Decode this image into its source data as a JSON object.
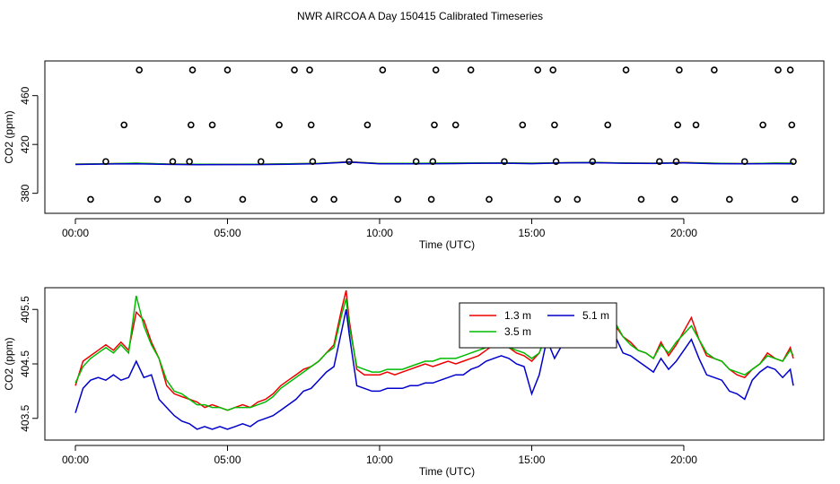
{
  "title": "NWR AIRCOA A  Day 150415  Calibrated Timeseries",
  "chart_data": [
    {
      "type": "scatter",
      "title": "",
      "xlabel": "Time (UTC)",
      "ylabel": "CO2 (ppm)",
      "xlim": [
        0,
        24
      ],
      "ylim": [
        368,
        484
      ],
      "x_ticks": [
        0,
        5,
        10,
        15,
        20
      ],
      "x_tick_labels": [
        "00:00",
        "05:00",
        "10:00",
        "15:00",
        "20:00"
      ],
      "y_ticks": [
        380,
        420,
        460
      ],
      "y_tick_labels": [
        "380",
        "420",
        "460"
      ],
      "grid": false,
      "scatter_points": [
        {
          "x": 0.5,
          "y": 375
        },
        {
          "x": 1.0,
          "y": 406
        },
        {
          "x": 1.6,
          "y": 436
        },
        {
          "x": 2.1,
          "y": 481
        },
        {
          "x": 2.7,
          "y": 375
        },
        {
          "x": 3.2,
          "y": 406
        },
        {
          "x": 3.7,
          "y": 375
        },
        {
          "x": 3.75,
          "y": 406
        },
        {
          "x": 3.8,
          "y": 436
        },
        {
          "x": 3.85,
          "y": 481
        },
        {
          "x": 4.5,
          "y": 436
        },
        {
          "x": 5.0,
          "y": 481
        },
        {
          "x": 5.5,
          "y": 375
        },
        {
          "x": 6.1,
          "y": 406
        },
        {
          "x": 6.7,
          "y": 436
        },
        {
          "x": 7.2,
          "y": 481
        },
        {
          "x": 7.7,
          "y": 481
        },
        {
          "x": 7.75,
          "y": 436
        },
        {
          "x": 7.8,
          "y": 406
        },
        {
          "x": 7.85,
          "y": 375
        },
        {
          "x": 8.5,
          "y": 375
        },
        {
          "x": 9.0,
          "y": 406
        },
        {
          "x": 9.6,
          "y": 436
        },
        {
          "x": 10.1,
          "y": 481
        },
        {
          "x": 10.6,
          "y": 375
        },
        {
          "x": 11.2,
          "y": 406
        },
        {
          "x": 11.7,
          "y": 375
        },
        {
          "x": 11.75,
          "y": 406
        },
        {
          "x": 11.8,
          "y": 436
        },
        {
          "x": 11.85,
          "y": 481
        },
        {
          "x": 12.5,
          "y": 436
        },
        {
          "x": 13.0,
          "y": 481
        },
        {
          "x": 13.6,
          "y": 375
        },
        {
          "x": 14.1,
          "y": 406
        },
        {
          "x": 14.7,
          "y": 436
        },
        {
          "x": 15.2,
          "y": 481
        },
        {
          "x": 15.7,
          "y": 481
        },
        {
          "x": 15.75,
          "y": 436
        },
        {
          "x": 15.8,
          "y": 406
        },
        {
          "x": 15.85,
          "y": 375
        },
        {
          "x": 16.5,
          "y": 375
        },
        {
          "x": 17.0,
          "y": 406
        },
        {
          "x": 17.5,
          "y": 436
        },
        {
          "x": 18.1,
          "y": 481
        },
        {
          "x": 18.6,
          "y": 375
        },
        {
          "x": 19.2,
          "y": 406
        },
        {
          "x": 19.7,
          "y": 375
        },
        {
          "x": 19.75,
          "y": 406
        },
        {
          "x": 19.8,
          "y": 436
        },
        {
          "x": 19.85,
          "y": 481
        },
        {
          "x": 20.4,
          "y": 436
        },
        {
          "x": 21.0,
          "y": 481
        },
        {
          "x": 21.5,
          "y": 375
        },
        {
          "x": 22.0,
          "y": 406
        },
        {
          "x": 22.6,
          "y": 436
        },
        {
          "x": 23.1,
          "y": 481
        },
        {
          "x": 23.5,
          "y": 481
        },
        {
          "x": 23.55,
          "y": 436
        },
        {
          "x": 23.6,
          "y": 406
        },
        {
          "x": 23.65,
          "y": 375
        }
      ],
      "line_series": [
        {
          "name": "1.3 m",
          "color": "#ee0000",
          "x": [
            0,
            1,
            2,
            3,
            4,
            5,
            6,
            7,
            8,
            9,
            10,
            11,
            12,
            13,
            14,
            15,
            16,
            17,
            18,
            19,
            20,
            21,
            22,
            23,
            23.6
          ],
          "y": [
            403.9,
            404.2,
            404.6,
            404.0,
            403.8,
            403.7,
            403.8,
            404.1,
            404.5,
            405.8,
            404.4,
            404.4,
            404.6,
            404.7,
            404.9,
            404.6,
            405.0,
            405.3,
            404.8,
            404.6,
            405.2,
            404.6,
            404.3,
            404.7,
            404.6
          ]
        },
        {
          "name": "3.5 m",
          "color": "#00bb00",
          "x": [
            0,
            1,
            2,
            3,
            4,
            5,
            6,
            7,
            8,
            9,
            10,
            11,
            12,
            13,
            14,
            15,
            16,
            17,
            18,
            19,
            20,
            21,
            22,
            23,
            23.6
          ],
          "y": [
            403.9,
            404.2,
            404.7,
            404.0,
            403.8,
            403.7,
            403.8,
            404.1,
            404.5,
            405.7,
            404.4,
            404.5,
            404.7,
            404.8,
            404.9,
            404.6,
            405.0,
            405.3,
            404.8,
            404.6,
            405.1,
            404.6,
            404.3,
            404.7,
            404.6
          ]
        },
        {
          "name": "5.1 m",
          "color": "#0000cc",
          "x": [
            0,
            1,
            2,
            3,
            4,
            5,
            6,
            7,
            8,
            9,
            10,
            11,
            12,
            13,
            14,
            15,
            16,
            17,
            18,
            19,
            20,
            21,
            22,
            23,
            23.6
          ],
          "y": [
            403.6,
            404.0,
            404.2,
            403.7,
            403.4,
            403.5,
            403.5,
            403.8,
            404.3,
            405.5,
            404.1,
            404.2,
            404.3,
            404.5,
            404.7,
            404.3,
            404.9,
            405.1,
            404.6,
            404.4,
            404.9,
            404.3,
            404.1,
            404.3,
            404.1
          ]
        }
      ]
    },
    {
      "type": "line",
      "title": "",
      "xlabel": "Time (UTC)",
      "ylabel": "CO2 (ppm)",
      "xlim": [
        0,
        24
      ],
      "ylim": [
        403.2,
        405.8
      ],
      "x_ticks": [
        0,
        5,
        10,
        15,
        20
      ],
      "x_tick_labels": [
        "00:00",
        "05:00",
        "10:00",
        "15:00",
        "20:00"
      ],
      "y_ticks": [
        403.5,
        404.5,
        405.5
      ],
      "y_tick_labels": [
        "403.5",
        "404.5",
        "405.5"
      ],
      "grid": false,
      "legend_position": "top-center",
      "series": [
        {
          "name": "1.3 m",
          "color": "#ee0000",
          "x": [
            0,
            0.25,
            0.5,
            0.75,
            1.0,
            1.25,
            1.5,
            1.75,
            2.0,
            2.25,
            2.5,
            2.75,
            3.0,
            3.25,
            3.5,
            3.75,
            4.0,
            4.25,
            4.5,
            4.75,
            5.0,
            5.25,
            5.5,
            5.75,
            6.0,
            6.25,
            6.5,
            6.75,
            7.0,
            7.25,
            7.5,
            7.75,
            8.0,
            8.25,
            8.5,
            8.75,
            8.9,
            9.0,
            9.25,
            9.5,
            9.75,
            10.0,
            10.25,
            10.5,
            10.75,
            11.0,
            11.25,
            11.5,
            11.75,
            12.0,
            12.25,
            12.5,
            12.75,
            13.0,
            13.25,
            13.5,
            13.75,
            14.0,
            14.25,
            14.5,
            14.75,
            15.0,
            15.25,
            15.5,
            15.75,
            16.0,
            16.25,
            16.5,
            16.75,
            17.0,
            17.25,
            17.5,
            17.75,
            18.0,
            18.25,
            18.5,
            18.75,
            19.0,
            19.25,
            19.5,
            19.75,
            20.0,
            20.25,
            20.5,
            20.75,
            21.0,
            21.25,
            21.5,
            21.75,
            22.0,
            22.25,
            22.5,
            22.75,
            23.0,
            23.25,
            23.5,
            23.6
          ],
          "y": [
            404.1,
            404.55,
            404.65,
            404.75,
            404.85,
            404.75,
            404.9,
            404.75,
            405.45,
            405.3,
            404.9,
            404.6,
            404.1,
            403.95,
            403.9,
            403.85,
            403.8,
            403.7,
            403.75,
            403.7,
            403.65,
            403.7,
            403.75,
            403.7,
            403.8,
            403.85,
            403.95,
            404.1,
            404.2,
            404.3,
            404.4,
            404.45,
            404.55,
            404.7,
            404.85,
            405.5,
            405.85,
            405.3,
            404.4,
            404.3,
            404.3,
            404.3,
            404.35,
            404.3,
            404.35,
            404.4,
            404.45,
            404.5,
            404.45,
            404.5,
            404.55,
            404.5,
            404.55,
            404.6,
            404.65,
            404.75,
            404.85,
            404.85,
            404.8,
            404.7,
            404.65,
            404.55,
            404.7,
            405.1,
            404.95,
            405.05,
            405.1,
            405.2,
            405.3,
            405.3,
            405.25,
            405.4,
            405.2,
            405.0,
            404.9,
            404.75,
            404.7,
            404.6,
            404.9,
            404.65,
            404.85,
            405.1,
            405.35,
            404.95,
            404.65,
            404.6,
            404.55,
            404.4,
            404.3,
            404.25,
            404.4,
            404.5,
            404.7,
            404.6,
            404.55,
            404.8,
            404.6
          ]
        },
        {
          "name": "3.5 m",
          "color": "#00bb00",
          "x": [
            0,
            0.25,
            0.5,
            0.75,
            1.0,
            1.25,
            1.5,
            1.75,
            2.0,
            2.25,
            2.5,
            2.75,
            3.0,
            3.25,
            3.5,
            3.75,
            4.0,
            4.25,
            4.5,
            4.75,
            5.0,
            5.25,
            5.5,
            5.75,
            6.0,
            6.25,
            6.5,
            6.75,
            7.0,
            7.25,
            7.5,
            7.75,
            8.0,
            8.25,
            8.5,
            8.75,
            8.9,
            9.0,
            9.25,
            9.5,
            9.75,
            10.0,
            10.25,
            10.5,
            10.75,
            11.0,
            11.25,
            11.5,
            11.75,
            12.0,
            12.25,
            12.5,
            12.75,
            13.0,
            13.25,
            13.5,
            13.75,
            14.0,
            14.25,
            14.5,
            14.75,
            15.0,
            15.25,
            15.5,
            15.75,
            16.0,
            16.25,
            16.5,
            16.75,
            17.0,
            17.25,
            17.5,
            17.75,
            18.0,
            18.25,
            18.5,
            18.75,
            19.0,
            19.25,
            19.5,
            19.75,
            20.0,
            20.25,
            20.5,
            20.75,
            21.0,
            21.25,
            21.5,
            21.75,
            22.0,
            22.25,
            22.5,
            22.75,
            23.0,
            23.25,
            23.5,
            23.6
          ],
          "y": [
            404.15,
            404.45,
            404.6,
            404.7,
            404.8,
            404.7,
            404.85,
            404.7,
            405.75,
            405.2,
            404.85,
            404.6,
            404.2,
            404.0,
            403.95,
            403.85,
            403.75,
            403.75,
            403.7,
            403.7,
            403.65,
            403.7,
            403.7,
            403.7,
            403.75,
            403.8,
            403.9,
            404.05,
            404.15,
            404.25,
            404.35,
            404.45,
            404.55,
            404.7,
            404.8,
            405.4,
            405.7,
            405.2,
            404.45,
            404.4,
            404.35,
            404.35,
            404.4,
            404.4,
            404.4,
            404.45,
            404.5,
            404.55,
            404.55,
            404.6,
            404.6,
            404.6,
            404.65,
            404.7,
            404.75,
            404.8,
            404.85,
            404.85,
            404.8,
            404.75,
            404.7,
            404.6,
            404.7,
            405.05,
            404.95,
            405.0,
            405.1,
            405.2,
            405.3,
            405.35,
            405.3,
            405.35,
            405.25,
            405.0,
            404.85,
            404.75,
            404.7,
            404.6,
            404.85,
            404.7,
            404.9,
            405.05,
            405.2,
            404.95,
            404.7,
            404.6,
            404.55,
            404.4,
            404.35,
            404.3,
            404.4,
            404.5,
            404.65,
            404.6,
            404.55,
            404.75,
            404.65
          ]
        },
        {
          "name": "5.1 m",
          "color": "#0000cc",
          "x": [
            0,
            0.25,
            0.5,
            0.75,
            1.0,
            1.25,
            1.5,
            1.75,
            2.0,
            2.25,
            2.5,
            2.75,
            3.0,
            3.25,
            3.5,
            3.75,
            4.0,
            4.25,
            4.5,
            4.75,
            5.0,
            5.25,
            5.5,
            5.75,
            6.0,
            6.25,
            6.5,
            6.75,
            7.0,
            7.25,
            7.5,
            7.75,
            8.0,
            8.25,
            8.5,
            8.75,
            8.9,
            9.0,
            9.25,
            9.5,
            9.75,
            10.0,
            10.25,
            10.5,
            10.75,
            11.0,
            11.25,
            11.5,
            11.75,
            12.0,
            12.25,
            12.5,
            12.75,
            13.0,
            13.25,
            13.5,
            13.75,
            14.0,
            14.25,
            14.5,
            14.75,
            15.0,
            15.25,
            15.5,
            15.75,
            16.0,
            16.25,
            16.5,
            16.75,
            17.0,
            17.25,
            17.5,
            17.75,
            18.0,
            18.25,
            18.5,
            18.75,
            19.0,
            19.25,
            19.5,
            19.75,
            20.0,
            20.25,
            20.5,
            20.75,
            21.0,
            21.25,
            21.5,
            21.75,
            22.0,
            22.25,
            22.5,
            22.75,
            23.0,
            23.25,
            23.5,
            23.6
          ],
          "y": [
            403.6,
            404.05,
            404.2,
            404.25,
            404.2,
            404.3,
            404.2,
            404.25,
            404.55,
            404.25,
            404.3,
            403.85,
            403.7,
            403.55,
            403.45,
            403.4,
            403.3,
            403.35,
            403.3,
            403.35,
            403.3,
            403.35,
            403.4,
            403.35,
            403.45,
            403.5,
            403.55,
            403.65,
            403.75,
            403.85,
            404.0,
            404.05,
            404.2,
            404.35,
            404.45,
            405.1,
            405.5,
            405.05,
            404.1,
            404.05,
            404.0,
            404.0,
            404.05,
            404.05,
            404.05,
            404.1,
            404.1,
            404.15,
            404.15,
            404.2,
            404.25,
            404.3,
            404.3,
            404.4,
            404.45,
            404.55,
            404.6,
            404.65,
            404.6,
            404.5,
            404.45,
            403.95,
            404.3,
            404.95,
            404.6,
            404.85,
            404.9,
            405.0,
            405.05,
            405.1,
            405.05,
            405.2,
            405.0,
            404.7,
            404.65,
            404.55,
            404.45,
            404.35,
            404.6,
            404.4,
            404.55,
            404.75,
            404.95,
            404.6,
            404.3,
            404.25,
            404.2,
            404.0,
            403.95,
            403.85,
            404.2,
            404.35,
            404.45,
            404.4,
            404.25,
            404.4,
            404.1
          ]
        }
      ]
    }
  ]
}
